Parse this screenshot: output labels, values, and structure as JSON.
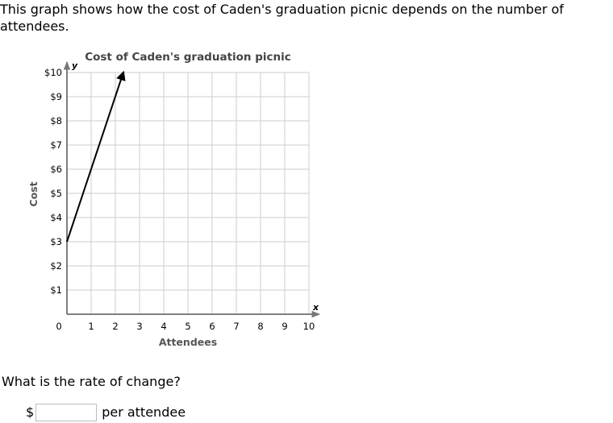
{
  "prompt": "This graph shows how the cost of Caden's graduation picnic depends on the number of attendees.",
  "question": "What is the rate of change?",
  "answer": {
    "prefix": "$",
    "value": "",
    "placeholder": "",
    "suffix": "per attendee"
  },
  "colors": {
    "grid": "#cccccc",
    "axis": "#555555",
    "line": "#000000",
    "title": "#444444",
    "label": "#555555"
  },
  "chart_data": {
    "type": "line",
    "title": "Cost of Caden's graduation picnic",
    "xlabel": "Attendees",
    "ylabel": "Cost",
    "x_axis_letter": "x",
    "y_axis_letter": "y",
    "xlim": [
      0,
      10
    ],
    "ylim": [
      0,
      10
    ],
    "grid": true,
    "x_ticks": [
      {
        "value": 0,
        "label": "0"
      },
      {
        "value": 1,
        "label": "1"
      },
      {
        "value": 2,
        "label": "2"
      },
      {
        "value": 3,
        "label": "3"
      },
      {
        "value": 4,
        "label": "4"
      },
      {
        "value": 5,
        "label": "5"
      },
      {
        "value": 6,
        "label": "6"
      },
      {
        "value": 7,
        "label": "7"
      },
      {
        "value": 8,
        "label": "8"
      },
      {
        "value": 9,
        "label": "9"
      },
      {
        "value": 10,
        "label": "10"
      }
    ],
    "y_ticks": [
      {
        "value": 1,
        "label": "$1"
      },
      {
        "value": 2,
        "label": "$2"
      },
      {
        "value": 3,
        "label": "$3"
      },
      {
        "value": 4,
        "label": "$4"
      },
      {
        "value": 5,
        "label": "$5"
      },
      {
        "value": 6,
        "label": "$6"
      },
      {
        "value": 7,
        "label": "$7"
      },
      {
        "value": 8,
        "label": "$8"
      },
      {
        "value": 9,
        "label": "$9"
      },
      {
        "value": 10,
        "label": "$10"
      }
    ],
    "series": [
      {
        "name": "cost",
        "points": [
          {
            "x": 0,
            "y": 3
          },
          {
            "x": 2.33,
            "y": 10
          }
        ],
        "arrow_end": true
      }
    ]
  }
}
